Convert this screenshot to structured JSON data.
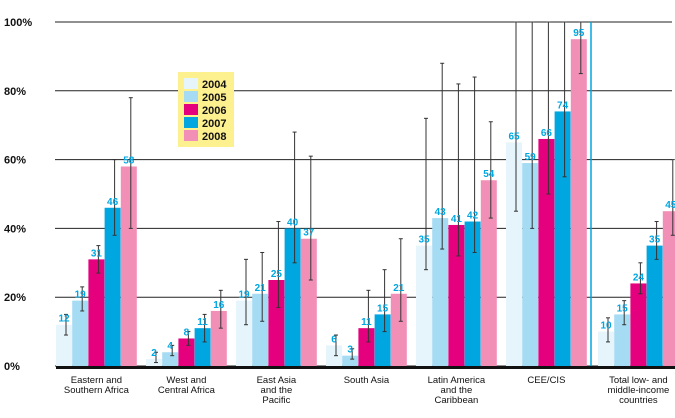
{
  "chart_data": {
    "type": "bar",
    "categories": [
      [
        "Eastern and",
        "Southern Africa"
      ],
      [
        "West and",
        "Central Africa"
      ],
      [
        "East Asia",
        "and the",
        "Pacific"
      ],
      [
        "South Asia"
      ],
      [
        "Latin America",
        "and the",
        "Caribbean"
      ],
      [
        "CEE/CIS"
      ],
      [
        "Total low- and",
        "middle-income",
        "countries"
      ]
    ],
    "series": [
      {
        "name": "2004",
        "color": "#e6f4fb",
        "values": [
          12,
          2,
          19,
          6,
          35,
          65,
          10
        ],
        "low": [
          9,
          1,
          12,
          3,
          28,
          45,
          7
        ],
        "high": [
          15,
          4,
          31,
          9,
          72,
          100,
          14
        ]
      },
      {
        "name": "2005",
        "color": "#a6dcf3",
        "values": [
          19,
          4,
          21,
          3,
          43,
          59,
          15
        ],
        "low": [
          16,
          3,
          13,
          2,
          34,
          40,
          12
        ],
        "high": [
          23,
          6,
          33,
          5,
          88,
          100,
          19
        ]
      },
      {
        "name": "2006",
        "color": "#e5007e",
        "values": [
          31,
          8,
          25,
          11,
          41,
          66,
          24
        ],
        "low": [
          27,
          6,
          17,
          7,
          32,
          50,
          21
        ],
        "high": [
          35,
          10,
          42,
          22,
          82,
          100,
          30
        ]
      },
      {
        "name": "2007",
        "color": "#00a6e0",
        "values": [
          46,
          11,
          40,
          15,
          42,
          74,
          35
        ],
        "low": [
          38,
          7,
          30,
          10,
          33,
          55,
          31
        ],
        "high": [
          60,
          15,
          68,
          28,
          84,
          100,
          42
        ]
      },
      {
        "name": "2008",
        "color": "#f28fb6",
        "values": [
          58,
          16,
          37,
          21,
          54,
          95,
          45
        ],
        "low": [
          40,
          11,
          25,
          13,
          43,
          85,
          38
        ],
        "high": [
          78,
          22,
          61,
          37,
          71,
          100,
          60
        ]
      }
    ],
    "yticks": [
      "0%",
      "20%",
      "40%",
      "60%",
      "80%",
      "100%"
    ],
    "ylim": [
      0,
      100
    ],
    "legend": {
      "position": "top-left",
      "background": "#fdf08f"
    },
    "label_color": "#00a6e0",
    "grid": true,
    "title": "",
    "xlabel": "",
    "ylabel": ""
  }
}
